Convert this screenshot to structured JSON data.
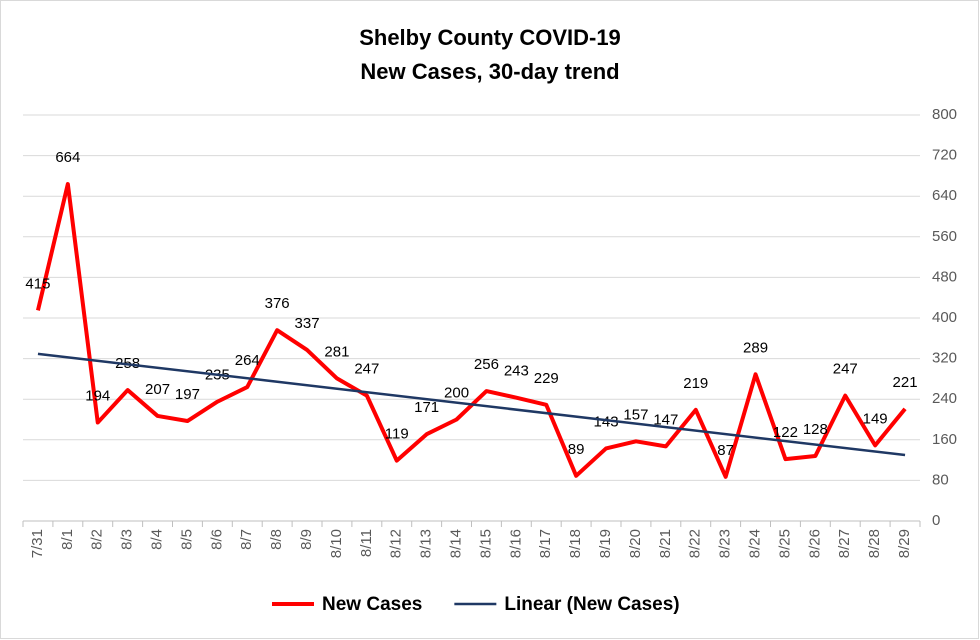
{
  "chart_data": {
    "type": "line",
    "title": [
      "Shelby County COVID-19",
      "New Cases, 30-day trend"
    ],
    "categories": [
      "7/31",
      "8/1",
      "8/2",
      "8/3",
      "8/4",
      "8/5",
      "8/6",
      "8/7",
      "8/8",
      "8/9",
      "8/10",
      "8/11",
      "8/12",
      "8/13",
      "8/14",
      "8/15",
      "8/16",
      "8/17",
      "8/18",
      "8/19",
      "8/20",
      "8/21",
      "8/22",
      "8/23",
      "8/24",
      "8/25",
      "8/26",
      "8/27",
      "8/28",
      "8/29"
    ],
    "series": [
      {
        "name": "New Cases",
        "color": "#ff0000",
        "values": [
          415,
          664,
          194,
          258,
          207,
          197,
          235,
          264,
          376,
          337,
          281,
          247,
          119,
          171,
          200,
          256,
          243,
          229,
          89,
          143,
          157,
          147,
          219,
          87,
          289,
          122,
          128,
          247,
          149,
          221
        ]
      },
      {
        "name": "Linear (New Cases)",
        "color": "#1f3864",
        "trendline": "linear",
        "of": 0
      }
    ],
    "ylim": [
      0,
      800
    ],
    "yticks": [
      0,
      80,
      160,
      240,
      320,
      400,
      480,
      560,
      640,
      720,
      800
    ],
    "y_axis_side": "right",
    "grid": true,
    "legend": "bottom",
    "data_labels": true
  }
}
